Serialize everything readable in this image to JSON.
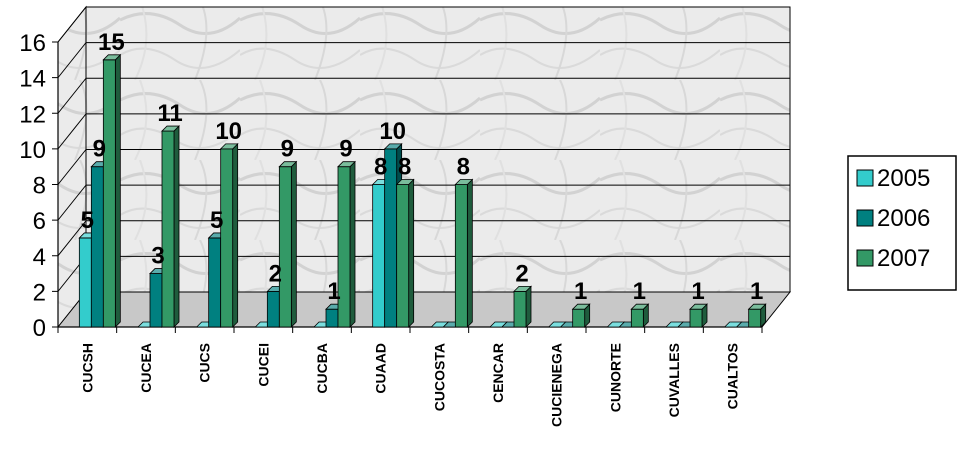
{
  "chart_data": {
    "type": "bar",
    "categories": [
      "CUCSH",
      "CUCEA",
      "CUCS",
      "CUCEI",
      "CUCBA",
      "CUAAD",
      "CUCOSTA",
      "CENCAR",
      "CUCIENEGA",
      "CUNORTE",
      "CUVALLES",
      "CUALTOS"
    ],
    "series": [
      {
        "name": "2005",
        "color": "#33CCCC",
        "values": [
          5,
          0,
          0,
          0,
          0,
          8,
          0,
          0,
          0,
          0,
          0,
          0
        ],
        "labels": [
          "5",
          "",
          "",
          "",
          "",
          "8",
          "",
          "",
          "",
          "",
          "",
          ""
        ]
      },
      {
        "name": "2006",
        "color": "#008080",
        "values": [
          9,
          3,
          5,
          2,
          1,
          10,
          0,
          0,
          0,
          0,
          0,
          0
        ],
        "labels": [
          "9",
          "3",
          "5",
          "2",
          "1",
          "10",
          "",
          "",
          "",
          "",
          "",
          ""
        ]
      },
      {
        "name": "2007",
        "color": "#339966",
        "values": [
          15,
          11,
          10,
          9,
          9,
          8,
          8,
          2,
          1,
          1,
          1,
          1
        ],
        "labels": [
          "15",
          "11",
          "10",
          "9",
          "9",
          "8",
          "8",
          "2",
          "1",
          "1",
          "1",
          "1"
        ]
      }
    ],
    "yticks": [
      "0",
      "2",
      "4",
      "6",
      "8",
      "10",
      "12",
      "14",
      "16"
    ],
    "ylim": [
      0,
      16
    ],
    "grid": true,
    "legend_position": "right",
    "title": "",
    "xlabel": "",
    "ylabel": ""
  }
}
